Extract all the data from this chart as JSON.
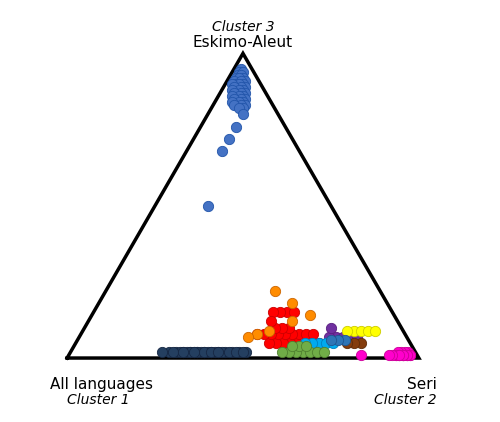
{
  "corner_labels": {
    "top": "Eskimo-Aleut",
    "top_italic": "Cluster 3",
    "bottom_left": "All languages",
    "bottom_left_italic": "Cluster 1",
    "bottom_right": "Seri",
    "bottom_right_italic": "Cluster 2"
  },
  "point_groups": [
    {
      "name": "eskimo_cluster_main",
      "color": "#4472C4",
      "edgecolor": "#2255AA",
      "size": 55,
      "points_ternary": [
        [
          0.03,
          0.02,
          0.95
        ],
        [
          0.04,
          0.02,
          0.94
        ],
        [
          0.05,
          0.02,
          0.93
        ],
        [
          0.03,
          0.03,
          0.94
        ],
        [
          0.04,
          0.03,
          0.93
        ],
        [
          0.06,
          0.02,
          0.92
        ],
        [
          0.04,
          0.04,
          0.92
        ],
        [
          0.05,
          0.03,
          0.92
        ],
        [
          0.07,
          0.02,
          0.91
        ],
        [
          0.04,
          0.05,
          0.91
        ],
        [
          0.05,
          0.04,
          0.91
        ],
        [
          0.07,
          0.03,
          0.9
        ],
        [
          0.05,
          0.05,
          0.9
        ],
        [
          0.06,
          0.04,
          0.9
        ],
        [
          0.08,
          0.02,
          0.9
        ],
        [
          0.05,
          0.06,
          0.89
        ],
        [
          0.06,
          0.05,
          0.89
        ],
        [
          0.08,
          0.03,
          0.89
        ],
        [
          0.06,
          0.06,
          0.88
        ],
        [
          0.07,
          0.05,
          0.88
        ],
        [
          0.09,
          0.03,
          0.88
        ],
        [
          0.06,
          0.07,
          0.87
        ],
        [
          0.07,
          0.06,
          0.87
        ],
        [
          0.09,
          0.04,
          0.87
        ],
        [
          0.07,
          0.07,
          0.86
        ],
        [
          0.08,
          0.06,
          0.86
        ],
        [
          0.1,
          0.04,
          0.86
        ],
        [
          0.07,
          0.08,
          0.85
        ],
        [
          0.08,
          0.07,
          0.85
        ],
        [
          0.1,
          0.05,
          0.85
        ],
        [
          0.08,
          0.08,
          0.84
        ],
        [
          0.09,
          0.07,
          0.84
        ],
        [
          0.11,
          0.05,
          0.84
        ],
        [
          0.08,
          0.09,
          0.83
        ],
        [
          0.09,
          0.08,
          0.83
        ],
        [
          0.11,
          0.06,
          0.83
        ],
        [
          0.09,
          0.09,
          0.82
        ],
        [
          0.1,
          0.08,
          0.82
        ]
      ]
    },
    {
      "name": "eskimo_outliers",
      "color": "#4472C4",
      "edgecolor": "#2255AA",
      "size": 55,
      "points_ternary": [
        [
          0.1,
          0.1,
          0.8
        ],
        [
          0.14,
          0.1,
          0.76
        ],
        [
          0.18,
          0.1,
          0.72
        ],
        [
          0.22,
          0.1,
          0.68
        ],
        [
          0.35,
          0.15,
          0.5
        ]
      ]
    },
    {
      "name": "seri_cluster",
      "color": "#FF00CC",
      "edgecolor": "#CC0099",
      "size": 55,
      "points_ternary": [
        [
          0.02,
          0.97,
          0.01
        ],
        [
          0.03,
          0.96,
          0.01
        ],
        [
          0.04,
          0.95,
          0.01
        ],
        [
          0.02,
          0.96,
          0.02
        ],
        [
          0.03,
          0.95,
          0.02
        ],
        [
          0.04,
          0.94,
          0.02
        ],
        [
          0.05,
          0.93,
          0.02
        ],
        [
          0.02,
          0.97,
          0.01
        ],
        [
          0.03,
          0.96,
          0.01
        ],
        [
          0.04,
          0.95,
          0.01
        ],
        [
          0.05,
          0.94,
          0.01
        ],
        [
          0.06,
          0.93,
          0.01
        ],
        [
          0.03,
          0.96,
          0.01
        ],
        [
          0.04,
          0.95,
          0.01
        ],
        [
          0.05,
          0.94,
          0.01
        ],
        [
          0.06,
          0.93,
          0.01
        ],
        [
          0.04,
          0.95,
          0.01
        ],
        [
          0.05,
          0.94,
          0.01
        ],
        [
          0.07,
          0.92,
          0.01
        ],
        [
          0.08,
          0.91,
          0.01
        ],
        [
          0.16,
          0.83,
          0.01
        ]
      ]
    },
    {
      "name": "dark_navy",
      "color": "#243F60",
      "edgecolor": "#162743",
      "size": 55,
      "points_ternary": [
        [
          0.6,
          0.38,
          0.02
        ],
        [
          0.62,
          0.36,
          0.02
        ],
        [
          0.64,
          0.34,
          0.02
        ],
        [
          0.66,
          0.32,
          0.02
        ],
        [
          0.68,
          0.3,
          0.02
        ],
        [
          0.7,
          0.28,
          0.02
        ],
        [
          0.58,
          0.4,
          0.02
        ],
        [
          0.56,
          0.42,
          0.02
        ],
        [
          0.54,
          0.44,
          0.02
        ],
        [
          0.52,
          0.46,
          0.02
        ],
        [
          0.5,
          0.48,
          0.02
        ],
        [
          0.48,
          0.5,
          0.02
        ],
        [
          0.61,
          0.37,
          0.02
        ],
        [
          0.63,
          0.35,
          0.02
        ],
        [
          0.65,
          0.33,
          0.02
        ],
        [
          0.67,
          0.31,
          0.02
        ],
        [
          0.69,
          0.29,
          0.02
        ],
        [
          0.59,
          0.39,
          0.02
        ],
        [
          0.57,
          0.41,
          0.02
        ],
        [
          0.55,
          0.43,
          0.02
        ],
        [
          0.53,
          0.45,
          0.02
        ],
        [
          0.51,
          0.47,
          0.02
        ],
        [
          0.49,
          0.49,
          0.02
        ],
        [
          0.62,
          0.36,
          0.02
        ],
        [
          0.64,
          0.34,
          0.02
        ],
        [
          0.66,
          0.32,
          0.02
        ],
        [
          0.6,
          0.38,
          0.02
        ],
        [
          0.58,
          0.4,
          0.02
        ],
        [
          0.56,
          0.42,
          0.02
        ],
        [
          0.63,
          0.35,
          0.02
        ],
        [
          0.72,
          0.26,
          0.02
        ]
      ]
    },
    {
      "name": "red",
      "color": "#FF0000",
      "edgecolor": "#CC0000",
      "size": 55,
      "points_ternary": [
        [
          0.3,
          0.65,
          0.05
        ],
        [
          0.32,
          0.63,
          0.05
        ],
        [
          0.34,
          0.61,
          0.05
        ],
        [
          0.36,
          0.59,
          0.05
        ],
        [
          0.38,
          0.57,
          0.05
        ],
        [
          0.4,
          0.55,
          0.05
        ],
        [
          0.28,
          0.67,
          0.05
        ],
        [
          0.26,
          0.69,
          0.05
        ],
        [
          0.3,
          0.62,
          0.08
        ],
        [
          0.32,
          0.6,
          0.08
        ],
        [
          0.34,
          0.58,
          0.08
        ],
        [
          0.36,
          0.56,
          0.08
        ],
        [
          0.38,
          0.54,
          0.08
        ],
        [
          0.4,
          0.52,
          0.08
        ],
        [
          0.28,
          0.64,
          0.08
        ],
        [
          0.26,
          0.66,
          0.08
        ],
        [
          0.32,
          0.58,
          0.1
        ],
        [
          0.34,
          0.56,
          0.1
        ],
        [
          0.36,
          0.54,
          0.1
        ],
        [
          0.3,
          0.55,
          0.15
        ],
        [
          0.32,
          0.53,
          0.15
        ],
        [
          0.34,
          0.51,
          0.15
        ],
        [
          0.28,
          0.57,
          0.15
        ],
        [
          0.36,
          0.52,
          0.12
        ],
        [
          0.42,
          0.5,
          0.08
        ]
      ]
    },
    {
      "name": "orange",
      "color": "#FF8C00",
      "edgecolor": "#CC6600",
      "size": 55,
      "points_ternary": [
        [
          0.24,
          0.62,
          0.14
        ],
        [
          0.3,
          0.58,
          0.12
        ],
        [
          0.38,
          0.53,
          0.09
        ],
        [
          0.42,
          0.5,
          0.08
        ],
        [
          0.45,
          0.48,
          0.07
        ],
        [
          0.27,
          0.55,
          0.18
        ],
        [
          0.3,
          0.48,
          0.22
        ]
      ]
    },
    {
      "name": "purple",
      "color": "#7030A0",
      "edgecolor": "#5A1E80",
      "size": 55,
      "points_ternary": [
        [
          0.2,
          0.73,
          0.07
        ],
        [
          0.18,
          0.75,
          0.07
        ],
        [
          0.16,
          0.77,
          0.07
        ],
        [
          0.14,
          0.79,
          0.07
        ],
        [
          0.22,
          0.71,
          0.07
        ],
        [
          0.2,
          0.7,
          0.1
        ]
      ]
    },
    {
      "name": "yellow",
      "color": "#FFFF00",
      "edgecolor": "#CCCC00",
      "size": 55,
      "points_ternary": [
        [
          0.14,
          0.77,
          0.09
        ],
        [
          0.12,
          0.79,
          0.09
        ],
        [
          0.1,
          0.81,
          0.09
        ],
        [
          0.08,
          0.83,
          0.09
        ],
        [
          0.16,
          0.75,
          0.09
        ]
      ]
    },
    {
      "name": "cyan",
      "color": "#00AAEE",
      "edgecolor": "#0080C0",
      "size": 55,
      "points_ternary": [
        [
          0.26,
          0.69,
          0.05
        ],
        [
          0.24,
          0.71,
          0.05
        ],
        [
          0.22,
          0.73,
          0.05
        ],
        [
          0.28,
          0.67,
          0.05
        ],
        [
          0.3,
          0.65,
          0.05
        ]
      ]
    },
    {
      "name": "lime_green",
      "color": "#70AD47",
      "edgecolor": "#508030",
      "size": 55,
      "points_ternary": [
        [
          0.32,
          0.66,
          0.02
        ],
        [
          0.34,
          0.64,
          0.02
        ],
        [
          0.36,
          0.62,
          0.02
        ],
        [
          0.38,
          0.6,
          0.02
        ],
        [
          0.3,
          0.68,
          0.02
        ],
        [
          0.28,
          0.7,
          0.02
        ],
        [
          0.26,
          0.72,
          0.02
        ],
        [
          0.32,
          0.64,
          0.04
        ],
        [
          0.34,
          0.62,
          0.04
        ],
        [
          0.3,
          0.66,
          0.04
        ]
      ]
    },
    {
      "name": "brown",
      "color": "#843C0C",
      "edgecolor": "#5F2C08",
      "size": 55,
      "points_ternary": [
        [
          0.14,
          0.81,
          0.05
        ],
        [
          0.16,
          0.79,
          0.05
        ],
        [
          0.18,
          0.77,
          0.05
        ]
      ]
    },
    {
      "name": "medium_blue",
      "color": "#2E75B6",
      "edgecolor": "#1F5590",
      "size": 55,
      "points_ternary": [
        [
          0.18,
          0.76,
          0.06
        ],
        [
          0.2,
          0.74,
          0.06
        ],
        [
          0.22,
          0.72,
          0.06
        ]
      ]
    }
  ],
  "triangle_linewidth": 2.5,
  "triangle_color": "black",
  "background_color": "white",
  "figsize": [
    5.0,
    4.22
  ],
  "dpi": 100
}
